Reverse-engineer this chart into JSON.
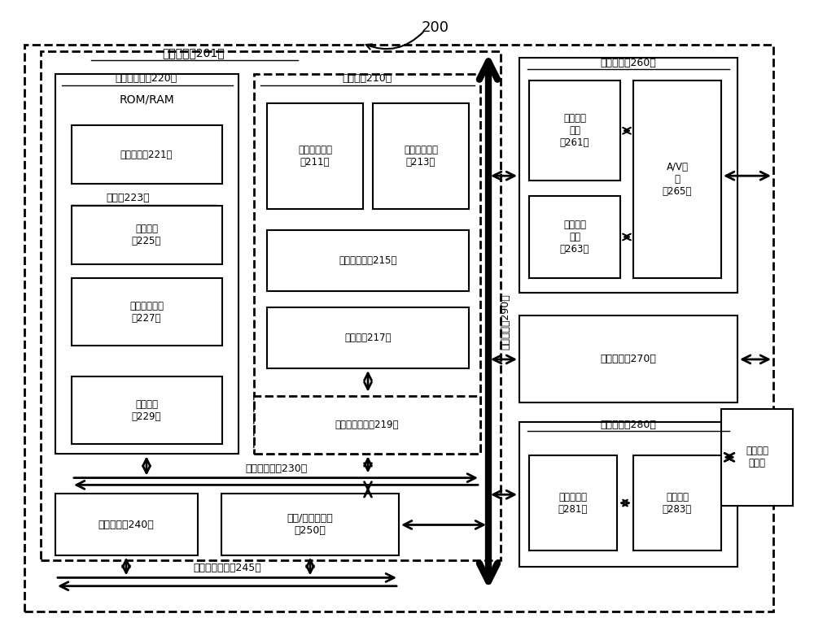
{
  "bg_color": "#ffffff",
  "label_200": "200",
  "basic_config_label": "基本配置（201）",
  "sys_mem_label": "系统存储器（220）",
  "rom_ram": "ROM/RAM",
  "os_label": "操作系统（221）",
  "app_label": "应用（223）",
  "other_app_label": "其他应用\n（225）",
  "fault_label": "故障诊断单元\n（227）",
  "prog_label": "程序数据\n（229）",
  "proc_label": "处理器（210）",
  "l1_label": "一级高速缓存\n（211）",
  "l2_label": "二级高速缓存\n（213）",
  "core_label": "处理器核心（215）",
  "reg_label": "寄存器（217）",
  "memctrl_label": "存储器控制器（219）",
  "mem_bus_label": "存储器总线（230）",
  "output_label": "输出设备（260）",
  "img_label": "图像处理\n单元\n（261）",
  "audio_label": "音频处理\n单元\n（263）",
  "av_label": "A/V端\n口\n（265）",
  "ext_label": "外设接口（270）",
  "comm_label": "通信设备（280）",
  "netctrl_label": "网络控制器\n（281）",
  "commport_label": "通信端口\n（283）",
  "other_comp_label": "其他计算\n机设备",
  "storage_dev_label": "存储设备（240）",
  "busctrl_label": "总线/接口控制器\n（250）",
  "iface_bus_label": "存储接口总线（245）",
  "bus290_label": "接口总线（290）"
}
